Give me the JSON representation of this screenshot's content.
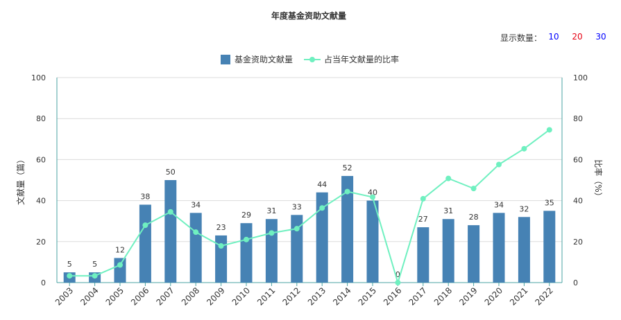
{
  "title": "年度基金资助文献量",
  "count_selector": {
    "label": "显示数量：",
    "options": [
      {
        "label": "10",
        "color": "#0000ff"
      },
      {
        "label": "20",
        "color": "#e60012"
      },
      {
        "label": "30",
        "color": "#0000ff"
      }
    ]
  },
  "chart_data": {
    "type": "bar+line",
    "categories": [
      "2003",
      "2004",
      "2005",
      "2006",
      "2007",
      "2008",
      "2009",
      "2010",
      "2011",
      "2012",
      "2013",
      "2014",
      "2015",
      "2016",
      "2017",
      "2018",
      "2019",
      "2020",
      "2021",
      "2022"
    ],
    "series": [
      {
        "name": "基金资助文献量",
        "type": "bar",
        "axis": "left",
        "color": "#4682b4",
        "values": [
          5,
          5,
          12,
          38,
          50,
          34,
          23,
          29,
          31,
          33,
          44,
          52,
          40,
          0,
          27,
          31,
          28,
          34,
          32,
          35
        ]
      },
      {
        "name": "占当年文献量的比率",
        "type": "line",
        "axis": "right",
        "color": "#6ff0c0",
        "values": [
          3.3,
          3.3,
          8.6,
          28.0,
          34.5,
          24.6,
          17.9,
          21.0,
          24.2,
          26.3,
          36.4,
          44.4,
          41.7,
          0,
          40.9,
          50.8,
          45.9,
          57.6,
          65.3,
          74.5
        ]
      }
    ],
    "y_left": {
      "label": "文献量（篇）",
      "ticks": [
        "0",
        "20",
        "40",
        "60",
        "80",
        "100"
      ],
      "range": [
        0,
        100
      ]
    },
    "y_right": {
      "label": "比率（%）",
      "ticks": [
        "0",
        "20",
        "40",
        "60",
        "80",
        "100"
      ],
      "range": [
        0,
        100
      ]
    },
    "legend_position": "top-center",
    "grid": true
  }
}
